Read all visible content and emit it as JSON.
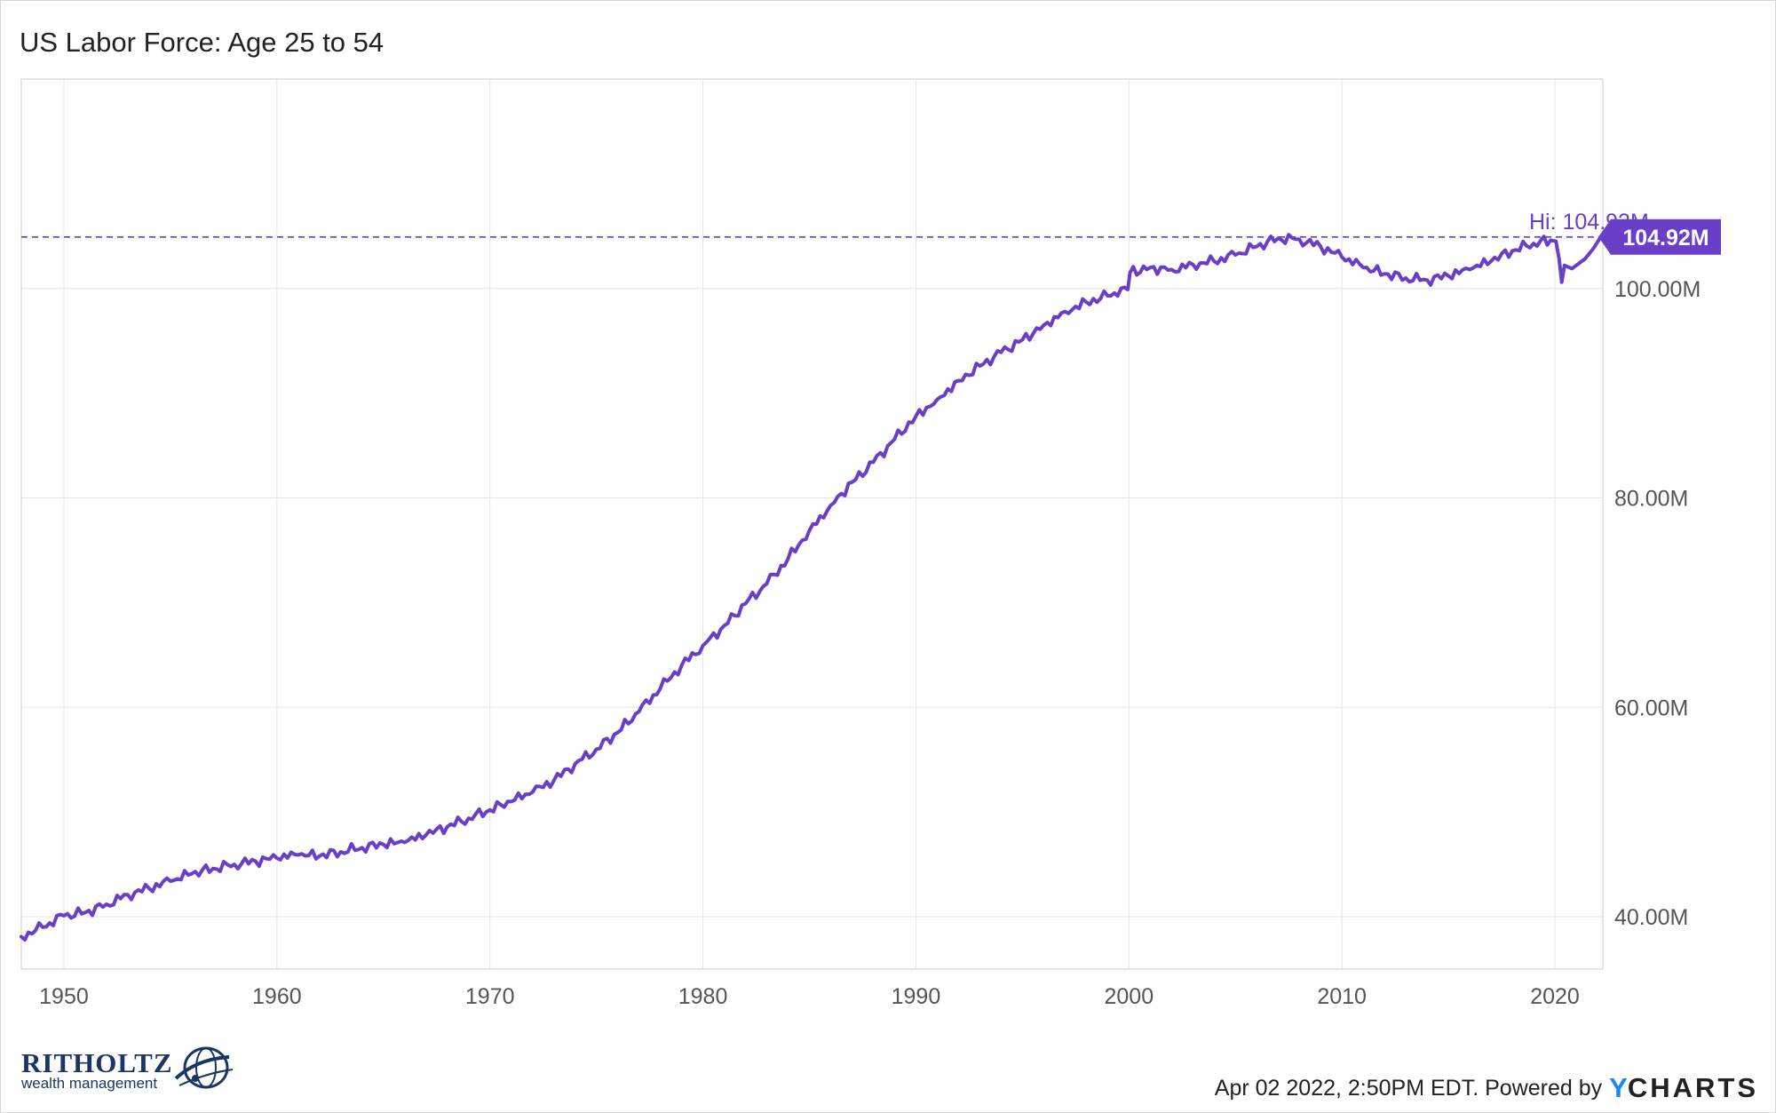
{
  "header": {
    "title": "US Labor Force: Age 25 to 54"
  },
  "chart_data": {
    "type": "line",
    "title": "US Labor Force: Age 25 to 54",
    "xlabel": "",
    "ylabel": "",
    "xlim": [
      1948,
      2022.25
    ],
    "ylim": [
      35,
      120
    ],
    "x_ticks": [
      "1950",
      "1960",
      "1970",
      "1980",
      "1990",
      "2000",
      "2010",
      "2020"
    ],
    "y_ticks": [
      "40.00M",
      "60.00M",
      "80.00M",
      "100.00M"
    ],
    "grid": true,
    "series": [
      {
        "color": "#6a3fc8",
        "points": [
          [
            1948,
            38.1
          ],
          [
            1949,
            39.0
          ],
          [
            1950,
            40.1
          ],
          [
            1951,
            40.4
          ],
          [
            1952,
            41.2
          ],
          [
            1953,
            42.1
          ],
          [
            1954,
            42.7
          ],
          [
            1955,
            43.4
          ],
          [
            1956,
            44.1
          ],
          [
            1957,
            44.6
          ],
          [
            1958,
            45.0
          ],
          [
            1959,
            45.3
          ],
          [
            1960,
            45.6
          ],
          [
            1961,
            45.9
          ],
          [
            1962,
            45.8
          ],
          [
            1963,
            46.2
          ],
          [
            1964,
            46.6
          ],
          [
            1965,
            46.9
          ],
          [
            1966,
            47.1
          ],
          [
            1967,
            47.8
          ],
          [
            1968,
            48.6
          ],
          [
            1969,
            49.4
          ],
          [
            1970,
            50.2
          ],
          [
            1971,
            51.0
          ],
          [
            1972,
            51.9
          ],
          [
            1973,
            53.0
          ],
          [
            1974,
            54.6
          ],
          [
            1975,
            56.0
          ],
          [
            1976,
            57.6
          ],
          [
            1977,
            59.6
          ],
          [
            1978,
            61.8
          ],
          [
            1979,
            64.0
          ],
          [
            1980,
            65.9
          ],
          [
            1981,
            67.8
          ],
          [
            1982,
            69.9
          ],
          [
            1983,
            71.8
          ],
          [
            1984,
            74.2
          ],
          [
            1985,
            76.9
          ],
          [
            1986,
            79.3
          ],
          [
            1987,
            81.5
          ],
          [
            1988,
            83.4
          ],
          [
            1989,
            85.6
          ],
          [
            1990,
            87.8
          ],
          [
            1991,
            89.4
          ],
          [
            1992,
            91.2
          ],
          [
            1993,
            92.6
          ],
          [
            1994,
            93.9
          ],
          [
            1995,
            95.1
          ],
          [
            1996,
            96.5
          ],
          [
            1997,
            97.8
          ],
          [
            1998,
            98.7
          ],
          [
            1999,
            99.3
          ],
          [
            1999.95,
            99.9
          ],
          [
            2000.05,
            101.5
          ],
          [
            2001,
            102.0
          ],
          [
            2002,
            101.8
          ],
          [
            2003,
            102.3
          ],
          [
            2004,
            102.6
          ],
          [
            2005,
            103.2
          ],
          [
            2006,
            104.0
          ],
          [
            2007,
            104.8
          ],
          [
            2008,
            104.7
          ],
          [
            2009,
            104.0
          ],
          [
            2010,
            103.0
          ],
          [
            2011,
            102.0
          ],
          [
            2012,
            101.4
          ],
          [
            2013,
            101.0
          ],
          [
            2014,
            100.8
          ],
          [
            2015,
            101.2
          ],
          [
            2016,
            101.8
          ],
          [
            2017,
            102.6
          ],
          [
            2018,
            103.6
          ],
          [
            2019,
            104.3
          ],
          [
            2019.8,
            104.6
          ],
          [
            2020.05,
            104.5
          ],
          [
            2020.2,
            102.8
          ],
          [
            2020.32,
            100.6
          ],
          [
            2020.45,
            102.2
          ],
          [
            2020.8,
            101.9
          ],
          [
            2021,
            102.2
          ],
          [
            2021.4,
            102.8
          ],
          [
            2021.8,
            103.8
          ],
          [
            2022.15,
            104.92
          ]
        ]
      }
    ],
    "annotations": [
      {
        "text": "Hi: 104.92M",
        "y": 104.92
      }
    ],
    "last_value_label": "104.92M"
  },
  "footer": {
    "brand_name": "RITHOLTZ",
    "brand_sub": "wealth management",
    "timestamp": "Apr 02 2022, 2:50PM EDT. Powered by",
    "ycharts_y": "Y",
    "ycharts_rest": "CHARTS"
  }
}
